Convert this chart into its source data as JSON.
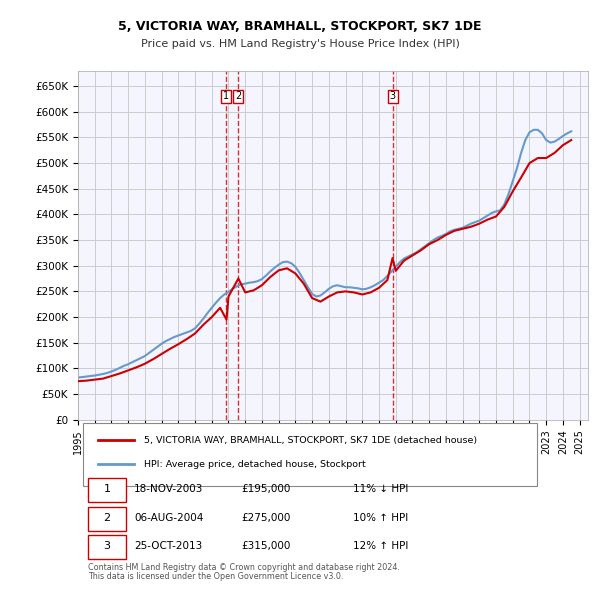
{
  "title": "5, VICTORIA WAY, BRAMHALL, STOCKPORT, SK7 1DE",
  "subtitle": "Price paid vs. HM Land Registry's House Price Index (HPI)",
  "ylabel_ticks": [
    "£0",
    "£50K",
    "£100K",
    "£150K",
    "£200K",
    "£250K",
    "£300K",
    "£350K",
    "£400K",
    "£450K",
    "£500K",
    "£550K",
    "£600K",
    "£650K"
  ],
  "ytick_values": [
    0,
    50000,
    100000,
    150000,
    200000,
    250000,
    300000,
    350000,
    400000,
    450000,
    500000,
    550000,
    600000,
    650000
  ],
  "xlim_start": 1995.0,
  "xlim_end": 2025.5,
  "ylim_min": 0,
  "ylim_max": 680000,
  "transaction_color": "#cc0000",
  "hpi_color": "#6699cc",
  "legend_label_property": "5, VICTORIA WAY, BRAMHALL, STOCKPORT, SK7 1DE (detached house)",
  "legend_label_hpi": "HPI: Average price, detached house, Stockport",
  "transactions": [
    {
      "id": 1,
      "date_str": "18-NOV-2003",
      "date_x": 2003.88,
      "price": 195000,
      "pct": "11%",
      "dir": "↓"
    },
    {
      "id": 2,
      "date_str": "06-AUG-2004",
      "date_x": 2004.59,
      "price": 275000,
      "pct": "10%",
      "dir": "↑"
    },
    {
      "id": 3,
      "date_str": "25-OCT-2013",
      "date_x": 2013.81,
      "price": 315000,
      "pct": "12%",
      "dir": "↑"
    }
  ],
  "vline_color": "#cc0000",
  "marker_color": "#cc0000",
  "footnote1": "Contains HM Land Registry data © Crown copyright and database right 2024.",
  "footnote2": "This data is licensed under the Open Government Licence v3.0.",
  "hpi_data_x": [
    1995.0,
    1995.25,
    1995.5,
    1995.75,
    1996.0,
    1996.25,
    1996.5,
    1996.75,
    1997.0,
    1997.25,
    1997.5,
    1997.75,
    1998.0,
    1998.25,
    1998.5,
    1998.75,
    1999.0,
    1999.25,
    1999.5,
    1999.75,
    2000.0,
    2000.25,
    2000.5,
    2000.75,
    2001.0,
    2001.25,
    2001.5,
    2001.75,
    2002.0,
    2002.25,
    2002.5,
    2002.75,
    2003.0,
    2003.25,
    2003.5,
    2003.75,
    2004.0,
    2004.25,
    2004.5,
    2004.75,
    2005.0,
    2005.25,
    2005.5,
    2005.75,
    2006.0,
    2006.25,
    2006.5,
    2006.75,
    2007.0,
    2007.25,
    2007.5,
    2007.75,
    2008.0,
    2008.25,
    2008.5,
    2008.75,
    2009.0,
    2009.25,
    2009.5,
    2009.75,
    2010.0,
    2010.25,
    2010.5,
    2010.75,
    2011.0,
    2011.25,
    2011.5,
    2011.75,
    2012.0,
    2012.25,
    2012.5,
    2012.75,
    2013.0,
    2013.25,
    2013.5,
    2013.75,
    2014.0,
    2014.25,
    2014.5,
    2014.75,
    2015.0,
    2015.25,
    2015.5,
    2015.75,
    2016.0,
    2016.25,
    2016.5,
    2016.75,
    2017.0,
    2017.25,
    2017.5,
    2017.75,
    2018.0,
    2018.25,
    2018.5,
    2018.75,
    2019.0,
    2019.25,
    2019.5,
    2019.75,
    2020.0,
    2020.25,
    2020.5,
    2020.75,
    2021.0,
    2021.25,
    2021.5,
    2021.75,
    2022.0,
    2022.25,
    2022.5,
    2022.75,
    2023.0,
    2023.25,
    2023.5,
    2023.75,
    2024.0,
    2024.25,
    2024.5
  ],
  "hpi_data_y": [
    82000,
    83000,
    84000,
    85000,
    86000,
    87500,
    89000,
    91000,
    94000,
    97000,
    101000,
    105000,
    108000,
    112000,
    116000,
    120000,
    124000,
    130000,
    136000,
    142000,
    148000,
    153000,
    157000,
    161000,
    164000,
    167000,
    170000,
    173000,
    178000,
    187000,
    197000,
    208000,
    218000,
    228000,
    237000,
    244000,
    249000,
    255000,
    260000,
    264000,
    265000,
    267000,
    268000,
    270000,
    274000,
    281000,
    289000,
    296000,
    302000,
    307000,
    308000,
    305000,
    298000,
    286000,
    272000,
    258000,
    245000,
    240000,
    242000,
    248000,
    255000,
    260000,
    262000,
    260000,
    258000,
    258000,
    257000,
    256000,
    254000,
    255000,
    258000,
    262000,
    267000,
    272000,
    280000,
    289000,
    298000,
    307000,
    314000,
    318000,
    322000,
    326000,
    332000,
    338000,
    344000,
    350000,
    355000,
    358000,
    362000,
    367000,
    370000,
    372000,
    374000,
    378000,
    382000,
    385000,
    388000,
    393000,
    398000,
    403000,
    406000,
    408000,
    420000,
    440000,
    465000,
    490000,
    520000,
    545000,
    560000,
    565000,
    565000,
    558000,
    545000,
    540000,
    542000,
    547000,
    553000,
    558000,
    562000
  ],
  "property_data_x": [
    1995.0,
    1995.5,
    1996.0,
    1996.5,
    1997.0,
    1997.5,
    1998.0,
    1998.5,
    1999.0,
    1999.5,
    2000.0,
    2000.5,
    2001.0,
    2001.5,
    2002.0,
    2002.5,
    2003.0,
    2003.5,
    2003.88,
    2004.0,
    2004.59,
    2005.0,
    2005.5,
    2006.0,
    2006.5,
    2007.0,
    2007.5,
    2008.0,
    2008.5,
    2009.0,
    2009.5,
    2010.0,
    2010.5,
    2011.0,
    2011.5,
    2012.0,
    2012.5,
    2013.0,
    2013.5,
    2013.81,
    2014.0,
    2014.5,
    2015.0,
    2015.5,
    2016.0,
    2016.5,
    2017.0,
    2017.5,
    2018.0,
    2018.5,
    2019.0,
    2019.5,
    2020.0,
    2020.5,
    2021.0,
    2021.5,
    2022.0,
    2022.5,
    2023.0,
    2023.5,
    2024.0,
    2024.5
  ],
  "property_data_y": [
    75000,
    76000,
    78000,
    80000,
    85000,
    90000,
    96000,
    102000,
    109000,
    118000,
    128000,
    138000,
    147000,
    157000,
    168000,
    185000,
    200000,
    218000,
    195000,
    240000,
    275000,
    248000,
    252000,
    262000,
    278000,
    291000,
    295000,
    285000,
    265000,
    237000,
    230000,
    240000,
    248000,
    250000,
    248000,
    244000,
    248000,
    257000,
    272000,
    315000,
    290000,
    310000,
    320000,
    330000,
    342000,
    350000,
    360000,
    368000,
    372000,
    376000,
    382000,
    390000,
    396000,
    415000,
    445000,
    472000,
    500000,
    510000,
    510000,
    520000,
    535000,
    545000
  ],
  "background_color": "#ffffff",
  "grid_color": "#cccccc",
  "plot_bg_color": "#f5f5ff"
}
